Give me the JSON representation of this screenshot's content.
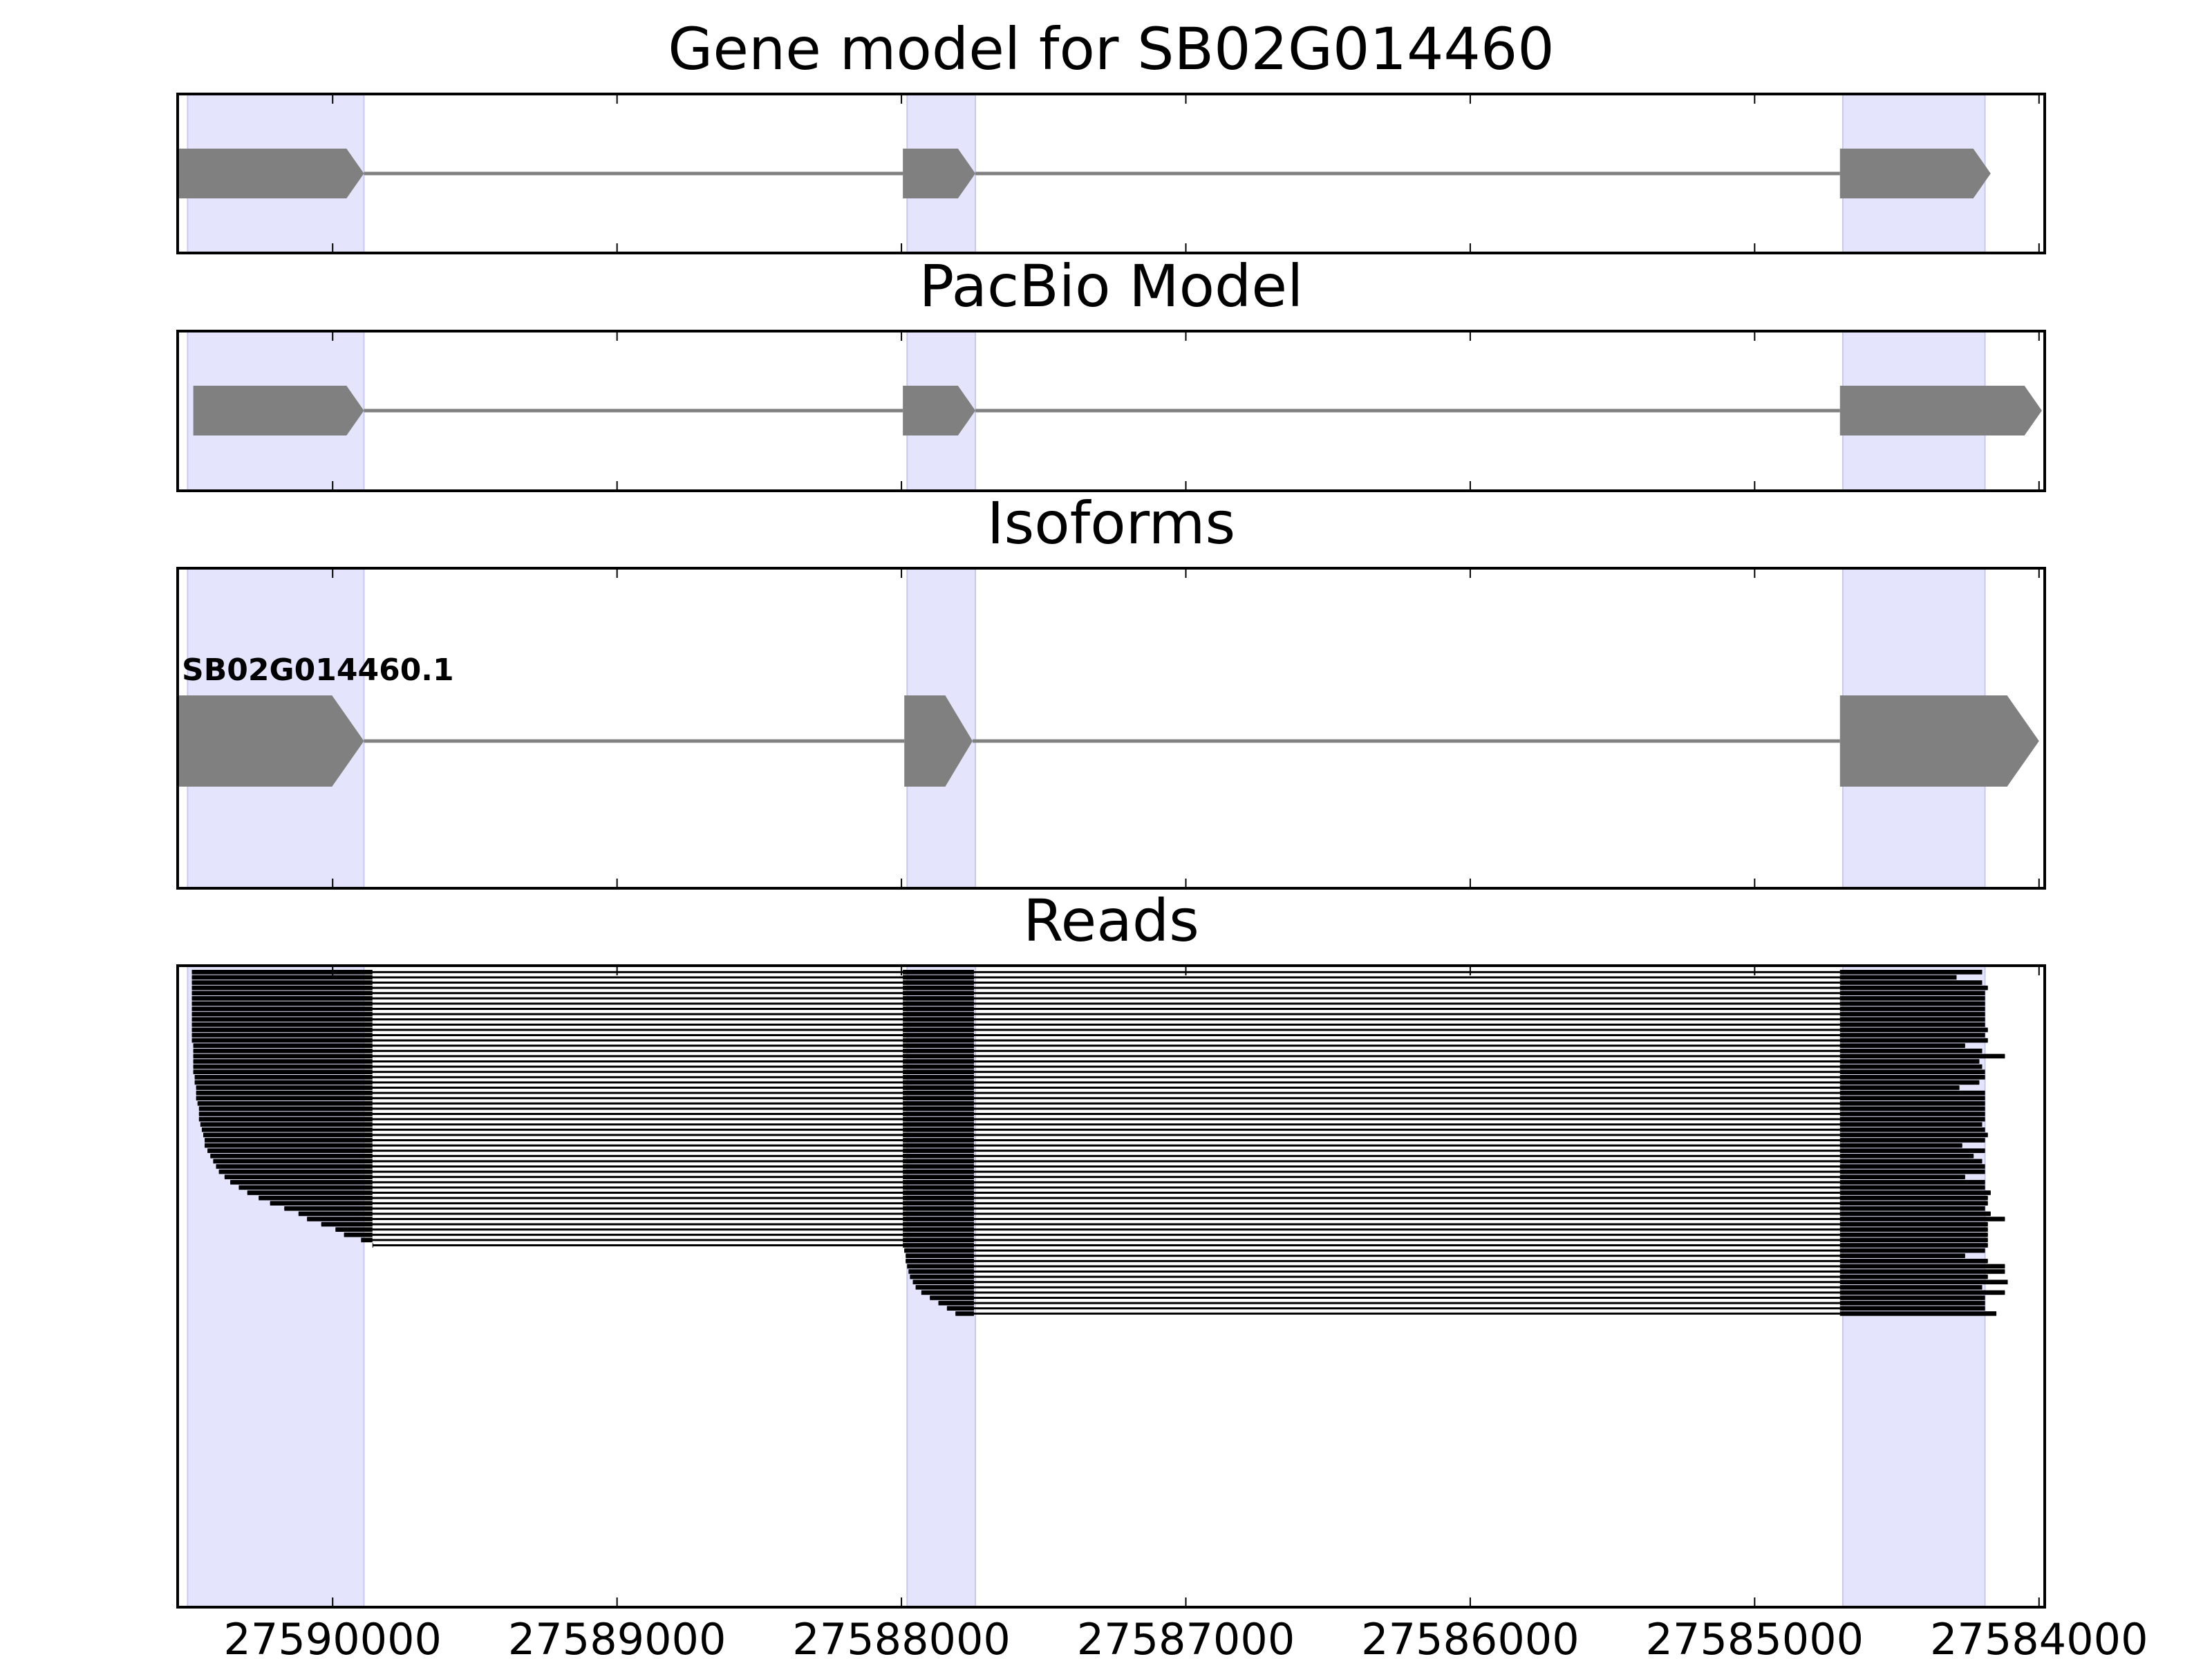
{
  "chart_data": {
    "type": "gene-track",
    "x_axis": {
      "reversed": true,
      "xlim": [
        27590545,
        27583980
      ],
      "ticks": [
        27590000,
        27589000,
        27588000,
        27587000,
        27586000,
        27585000,
        27584000
      ],
      "tick_labels": [
        "27590000",
        "27589000",
        "27588000",
        "27587000",
        "27586000",
        "27585000",
        "27584000"
      ]
    },
    "highlight_color": "#e4e4fc",
    "feature_color": "#808080",
    "read_color": "#000000",
    "exon_highlights": [
      [
        27590510,
        27589890
      ],
      [
        27587980,
        27587740
      ],
      [
        27584690,
        27584190
      ]
    ],
    "panels": [
      {
        "title": "Gene model for SB02G014460",
        "track": "gene_model",
        "exons": [
          [
            27590540,
            27589890
          ],
          [
            27587995,
            27587740
          ],
          [
            27584700,
            27584170
          ]
        ]
      },
      {
        "title": "PacBio Model",
        "track": "pacbio_model",
        "exons": [
          [
            27590490,
            27589890
          ],
          [
            27587995,
            27587740
          ],
          [
            27584700,
            27583990
          ]
        ]
      },
      {
        "title": "Isoforms",
        "track": "isoforms",
        "isoforms": [
          {
            "label": "SB02G014460.1",
            "exons": [
              [
                27590540,
                27589890
              ],
              [
                27587990,
                27587750
              ],
              [
                27584700,
                27584000
              ]
            ]
          }
        ]
      },
      {
        "title": "Reads",
        "track": "reads",
        "full_read_starts": [
          27590495,
          27590495,
          27590495,
          27590495,
          27590495,
          27590495,
          27590495,
          27590495,
          27590495,
          27590495,
          27590495,
          27590495,
          27590495,
          27590495,
          27590490,
          27590490,
          27590490,
          27590490,
          27590490,
          27590490,
          27590485,
          27590485,
          27590480,
          27590480,
          27590480,
          27590475,
          27590470,
          27590470,
          27590470,
          27590465,
          27590460,
          27590455,
          27590450,
          27590450,
          27590440,
          27590430,
          27590420,
          27590410,
          27590400,
          27590380,
          27590360,
          27590330,
          27590300,
          27590260,
          27590220,
          27590170,
          27590120,
          27590090,
          27590040,
          27589990,
          27589960,
          27589900,
          27589860
        ],
        "full_read_ends": [
          27584200,
          27584290,
          27584200,
          27584180,
          27584190,
          27584190,
          27584190,
          27584190,
          27584190,
          27584190,
          27584190,
          27584180,
          27584190,
          27584180,
          27584260,
          27584200,
          27584120,
          27584210,
          27584200,
          27584190,
          27584190,
          27584210,
          27584280,
          27584190,
          27584190,
          27584190,
          27584190,
          27584190,
          27584190,
          27584200,
          27584190,
          27584180,
          27584190,
          27584270,
          27584190,
          27584230,
          27584200,
          27584190,
          27584190,
          27584260,
          27584190,
          27584190,
          27584170,
          27584180,
          27584180,
          27584190,
          27584170,
          27584120,
          27584180,
          27584180,
          27584180,
          27584180,
          27584180
        ],
        "partial_read_starts": [
          27587990,
          27587985,
          27587985,
          27587980,
          27587975,
          27587970,
          27587960,
          27587950,
          27587930,
          27587900,
          27587870,
          27587840,
          27587810
        ],
        "partial_read_ends": [
          27584190,
          27584260,
          27584180,
          27584120,
          27584120,
          27584180,
          27584110,
          27584200,
          27584120,
          27584190,
          27584190,
          27584190,
          27584150
        ]
      }
    ]
  }
}
